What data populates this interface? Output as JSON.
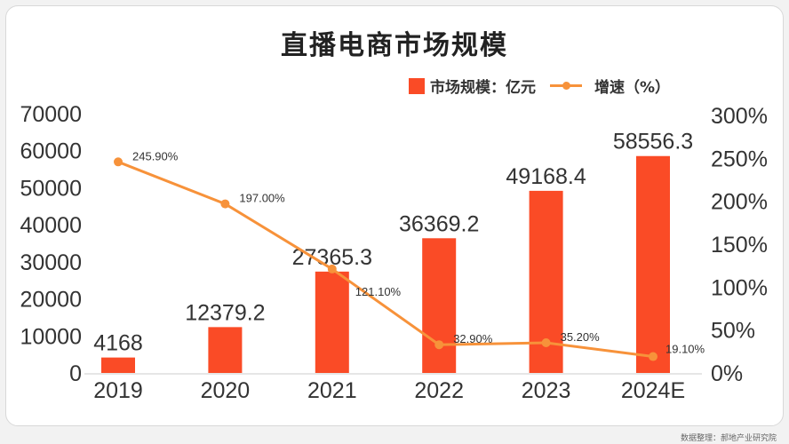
{
  "title": "直播电商市场规模",
  "source": "数据整理：郝地产业研究院",
  "colors": {
    "bar": "#fa4b26",
    "line": "#f7923a"
  },
  "chart_data": {
    "type": "bar+line",
    "title": "直播电商市场规模",
    "categories": [
      "2019",
      "2020",
      "2021",
      "2022",
      "2023",
      "2024E"
    ],
    "series": [
      {
        "name": "市场规模：亿元",
        "type": "bar",
        "axis": "left",
        "values": [
          4168,
          12379.2,
          27365.3,
          36369.2,
          49168.4,
          58556.3
        ],
        "labels": [
          "4168",
          "12379.2",
          "27365.3",
          "36369.2",
          "49168.4",
          "58556.3"
        ]
      },
      {
        "name": "增速（%）",
        "type": "line",
        "axis": "right",
        "values": [
          245.9,
          197.0,
          121.1,
          32.9,
          35.2,
          19.1
        ],
        "labels": [
          "245.90%",
          "197.00%",
          "121.10%",
          "32.90%",
          "35.20%",
          "19.10%"
        ]
      }
    ],
    "yleft": {
      "lim": [
        0,
        70000
      ],
      "ticks": [
        "0",
        "10000",
        "20000",
        "30000",
        "40000",
        "50000",
        "60000",
        "70000"
      ]
    },
    "yright": {
      "lim": [
        0,
        300
      ],
      "ticks": [
        "0%",
        "50%",
        "100%",
        "150%",
        "200%",
        "250%",
        "300%"
      ]
    },
    "legend": "top-right",
    "grid": false
  }
}
